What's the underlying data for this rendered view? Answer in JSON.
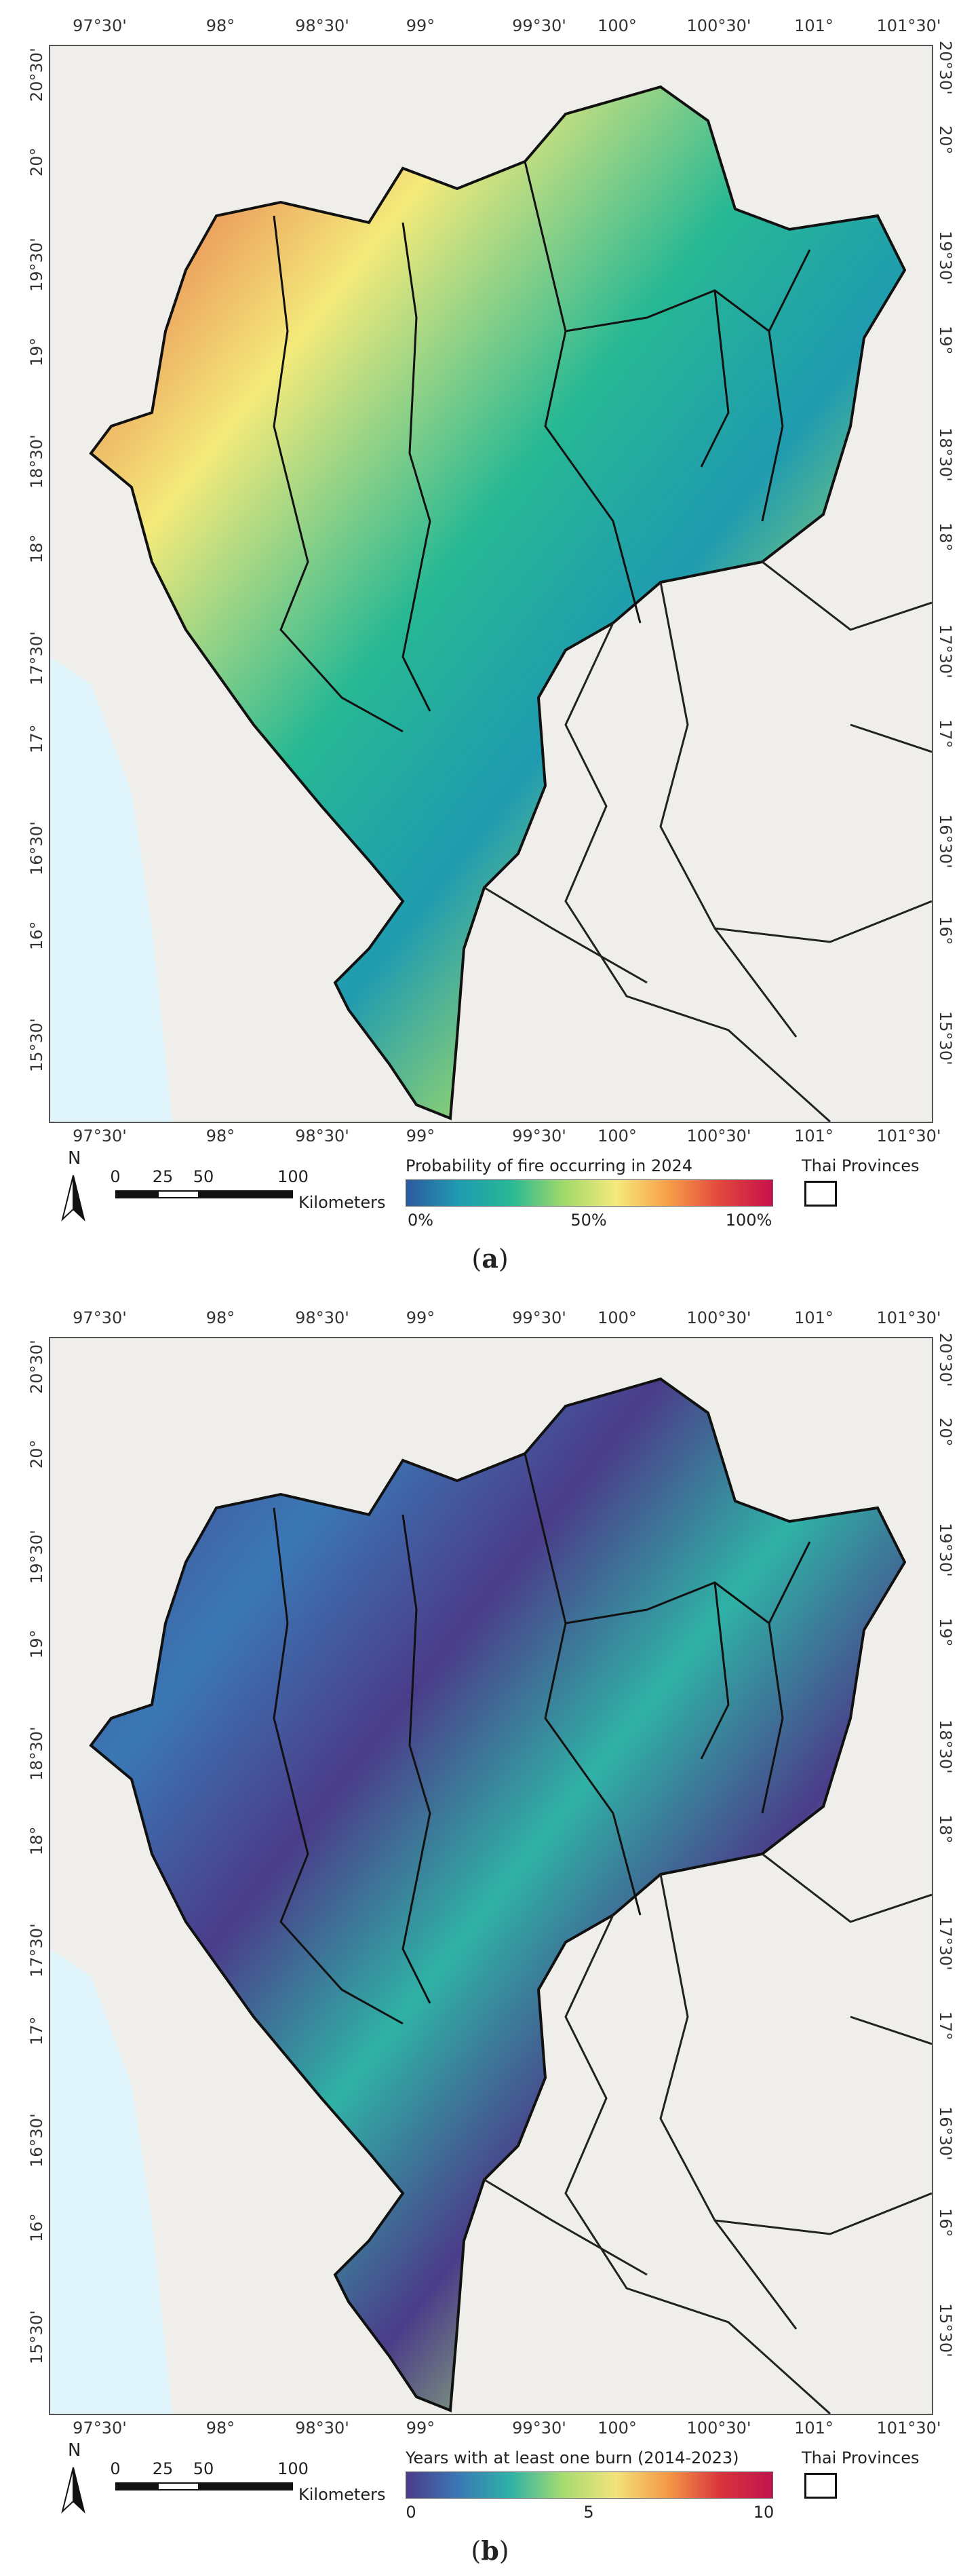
{
  "lon_ticks": [
    "97°30'",
    "98°",
    "98°30'",
    "99°",
    "99°30'",
    "100°",
    "100°30'",
    "101°",
    "101°30'"
  ],
  "lat_ticks": [
    "20°30'",
    "20°",
    "19°30'",
    "19°",
    "18°30'",
    "18°",
    "17°30'",
    "17°",
    "16°30'",
    "16°",
    "15°30'"
  ],
  "scale_bar": {
    "labels": [
      "0",
      "25",
      "50",
      "100"
    ],
    "unit": "Kilometers"
  },
  "north_label": "N",
  "colors": {
    "ocean": "#dff4fb",
    "terrain": "#efeeeb",
    "ramp_fire": [
      "#2c5aa0",
      "#1f9bb0",
      "#27b894",
      "#9fd96a",
      "#f4ea7a",
      "#f8a04a",
      "#e2463b",
      "#c8104d"
    ],
    "ramp_burn": [
      "#4b3c8a",
      "#3a78b5",
      "#2fb2a6",
      "#a6dc70",
      "#f2e27a",
      "#f59946",
      "#d9343c",
      "#c0144f"
    ]
  },
  "panels": [
    {
      "id": "a",
      "legend_title": "Probability of fire occurring in 2024",
      "legend_ticks": [
        "0%",
        "50%",
        "100%"
      ],
      "provinces_label": "Thai Provinces",
      "caption": "a"
    },
    {
      "id": "b",
      "legend_title": "Years with at least one burn (2014-2023)",
      "legend_ticks": [
        "0",
        "5",
        "10"
      ],
      "provinces_label": "Thai Provinces",
      "caption": "b"
    }
  ]
}
